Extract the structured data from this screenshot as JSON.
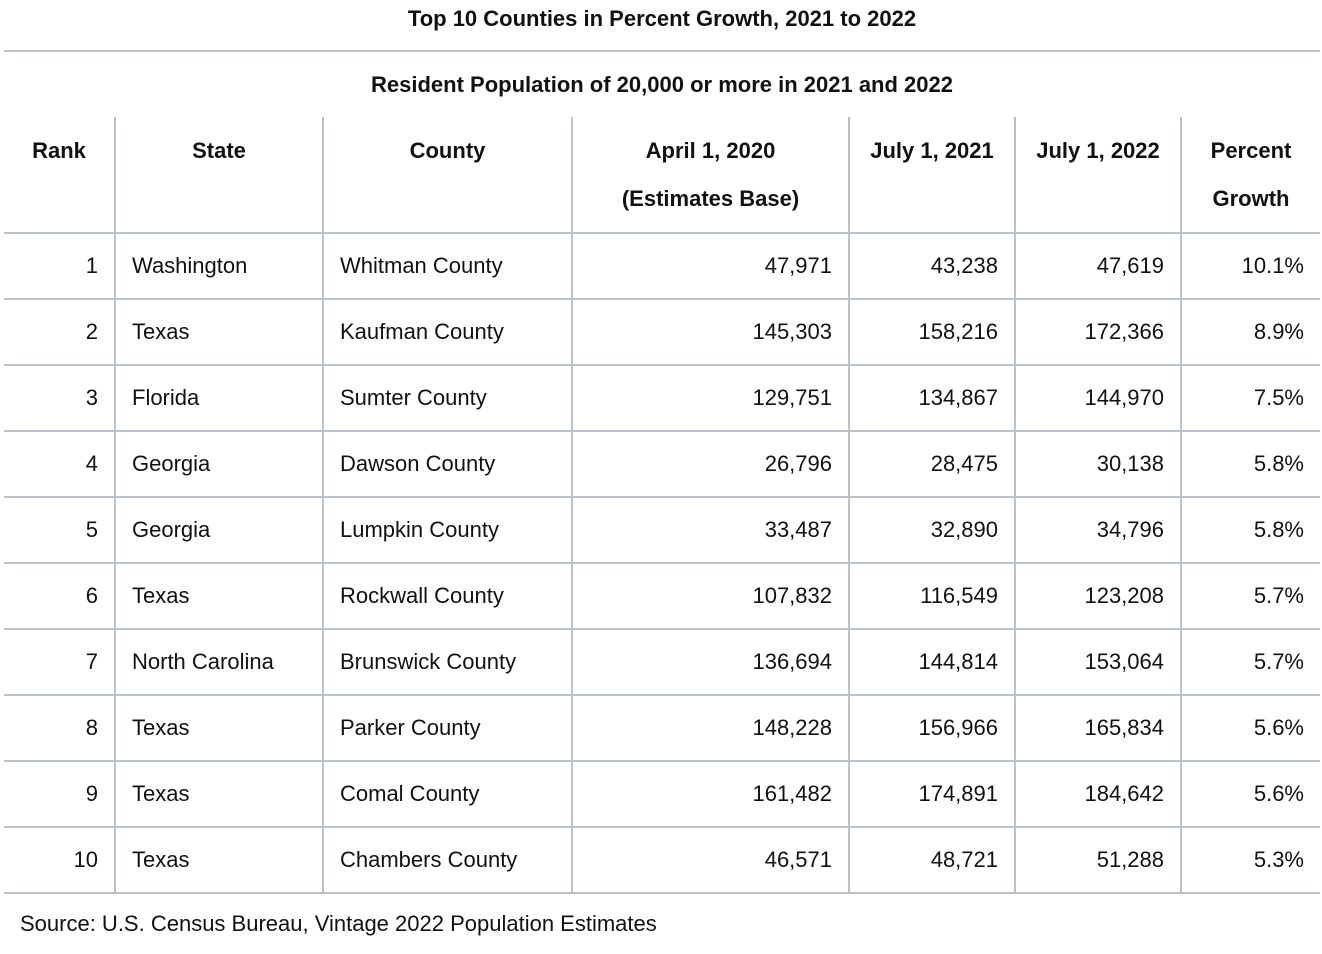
{
  "title": "Top 10 Counties in Percent Growth, 2021 to 2022",
  "subtitle": "Resident Population of 20,000 or more in 2021 and 2022",
  "columns": [
    {
      "line1": "Rank",
      "line2": ""
    },
    {
      "line1": "State",
      "line2": ""
    },
    {
      "line1": "County",
      "line2": ""
    },
    {
      "line1": "April 1, 2020",
      "line2": "(Estimates Base)"
    },
    {
      "line1": "July 1, 2021",
      "line2": ""
    },
    {
      "line1": "July 1, 2022",
      "line2": ""
    },
    {
      "line1": "Percent",
      "line2": "Growth"
    }
  ],
  "rows": [
    [
      "1",
      "Washington",
      "Whitman County",
      "47,971",
      "43,238",
      "47,619",
      "10.1%"
    ],
    [
      "2",
      "Texas",
      "Kaufman County",
      "145,303",
      "158,216",
      "172,366",
      "8.9%"
    ],
    [
      "3",
      "Florida",
      "Sumter County",
      "129,751",
      "134,867",
      "144,970",
      "7.5%"
    ],
    [
      "4",
      "Georgia",
      "Dawson County",
      "26,796",
      "28,475",
      "30,138",
      "5.8%"
    ],
    [
      "5",
      "Georgia",
      "Lumpkin County",
      "33,487",
      "32,890",
      "34,796",
      "5.8%"
    ],
    [
      "6",
      "Texas",
      "Rockwall County",
      "107,832",
      "116,549",
      "123,208",
      "5.7%"
    ],
    [
      "7",
      "North Carolina",
      "Brunswick County",
      "136,694",
      "144,814",
      "153,064",
      "5.7%"
    ],
    [
      "8",
      "Texas",
      "Parker County",
      "148,228",
      "156,966",
      "165,834",
      "5.6%"
    ],
    [
      "9",
      "Texas",
      "Comal County",
      "161,482",
      "174,891",
      "184,642",
      "5.6%"
    ],
    [
      "10",
      "Texas",
      "Chambers County",
      "46,571",
      "48,721",
      "51,288",
      "5.3%"
    ]
  ],
  "source": "Source: U.S. Census Bureau, Vintage 2022 Population Estimates"
}
